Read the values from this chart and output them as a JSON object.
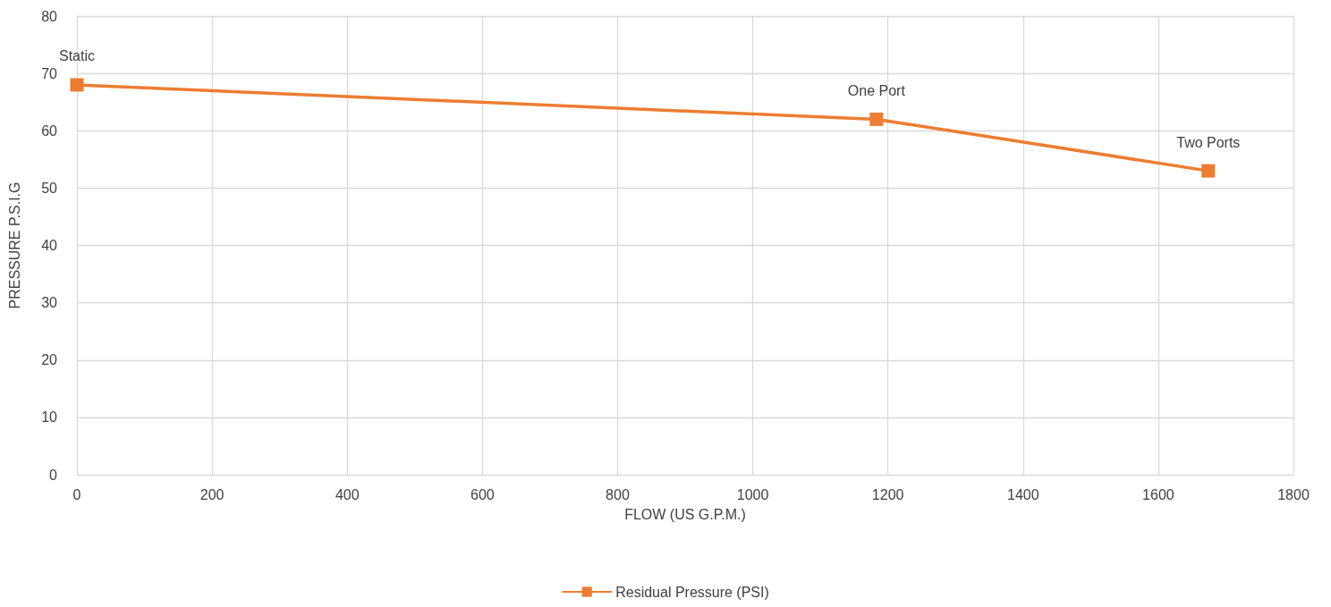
{
  "chart_data": {
    "type": "line",
    "x": [
      0,
      1183,
      1674
    ],
    "series": [
      {
        "name": "Residual Pressure (PSI)",
        "color": "#ed7d31",
        "values": [
          68,
          62,
          53
        ]
      }
    ],
    "xlabel": "FLOW (US G.P.M.)",
    "ylabel": "PRESSURE P.S.I.G",
    "xlim": [
      0,
      1800
    ],
    "xticks": [
      0,
      200,
      400,
      600,
      800,
      1000,
      1200,
      1400,
      1600,
      1800
    ],
    "ylim": [
      0,
      80
    ],
    "yticks": [
      0,
      10,
      20,
      30,
      40,
      50,
      60,
      70,
      80
    ],
    "annotations": [
      {
        "text": "Static",
        "x": 0,
        "y": 68
      },
      {
        "text": "One Port",
        "x": 1183,
        "y": 62
      },
      {
        "text": "Two Ports",
        "x": 1674,
        "y": 53
      }
    ],
    "grid": true,
    "legend": "bottom",
    "marker": "square",
    "line_style": "solid"
  }
}
